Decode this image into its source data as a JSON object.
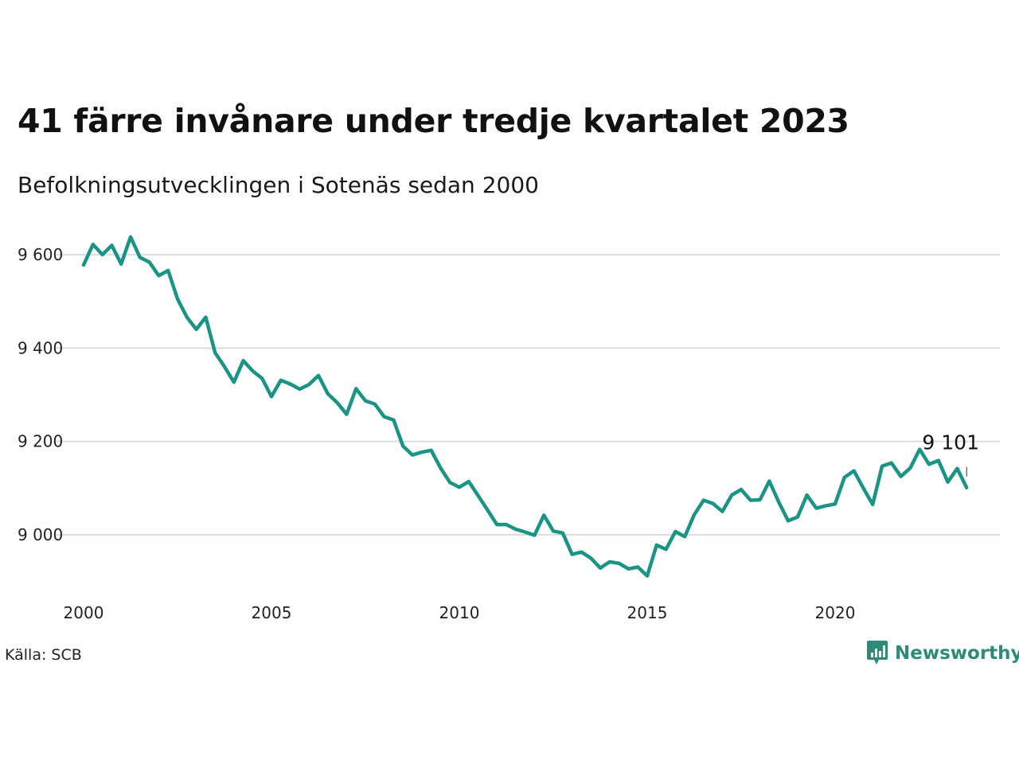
{
  "title": "41 färre invånare under tredje kvartalet 2023",
  "subtitle": "Befolkningsutvecklingen i Sotenäs sedan 2000",
  "source": "Källa: SCB",
  "brand": {
    "name": "Newsworthy",
    "icon": "newsworthy-logo-icon",
    "color": "#2e8b7a"
  },
  "colors": {
    "line": "#1a9485",
    "grid": "#dddddd"
  },
  "chart_data": {
    "type": "line",
    "title": "41 färre invånare under tredje kvartalet 2023",
    "subtitle": "Befolkningsutvecklingen i Sotenäs sedan 2000",
    "xlabel": "",
    "ylabel": "",
    "x_ticks": [
      2000,
      2005,
      2010,
      2015,
      2020
    ],
    "y_ticks": [
      9000,
      9200,
      9400,
      9600
    ],
    "y_tick_labels": [
      "9 000",
      "9 200",
      "9 400",
      "9 600"
    ],
    "x_tick_labels": [
      "2000",
      "2005",
      "2010",
      "2015",
      "2020"
    ],
    "ylim": [
      8880,
      9660
    ],
    "grid": true,
    "end_label": "9 101",
    "series": [
      {
        "x": [
          "2000Q1",
          "2000Q2",
          "2000Q3",
          "2000Q4",
          "2001Q1",
          "2001Q2",
          "2001Q3",
          "2001Q4",
          "2002Q1",
          "2002Q2",
          "2002Q3",
          "2002Q4",
          "2003Q1",
          "2003Q2",
          "2003Q3",
          "2003Q4",
          "2004Q1",
          "2004Q2",
          "2004Q3",
          "2004Q4",
          "2005Q1",
          "2005Q2",
          "2005Q3",
          "2005Q4",
          "2006Q1",
          "2006Q2",
          "2006Q3",
          "2006Q4",
          "2007Q1",
          "2007Q2",
          "2007Q3",
          "2007Q4",
          "2008Q1",
          "2008Q2",
          "2008Q3",
          "2008Q4",
          "2009Q1",
          "2009Q2",
          "2009Q3",
          "2009Q4",
          "2010Q1",
          "2010Q2",
          "2010Q3",
          "2010Q4",
          "2011Q1",
          "2011Q2",
          "2011Q3",
          "2011Q4",
          "2012Q1",
          "2012Q2",
          "2012Q3",
          "2012Q4",
          "2013Q1",
          "2013Q2",
          "2013Q3",
          "2013Q4",
          "2014Q1",
          "2014Q2",
          "2014Q3",
          "2014Q4",
          "2015Q1",
          "2015Q2",
          "2015Q3",
          "2015Q4",
          "2016Q1",
          "2016Q2",
          "2016Q3",
          "2016Q4",
          "2017Q1",
          "2017Q2",
          "2017Q3",
          "2017Q4",
          "2018Q1",
          "2018Q2",
          "2018Q3",
          "2018Q4",
          "2019Q1",
          "2019Q2",
          "2019Q3",
          "2019Q4",
          "2020Q1",
          "2020Q2",
          "2020Q3",
          "2020Q4",
          "2021Q1",
          "2021Q2",
          "2021Q3",
          "2021Q4",
          "2022Q1",
          "2022Q2",
          "2022Q3",
          "2022Q4",
          "2023Q1",
          "2023Q2",
          "2023Q3"
        ],
        "values": [
          9578,
          9622,
          9600,
          9620,
          9580,
          9638,
          9594,
          9584,
          9555,
          9566,
          9505,
          9466,
          9440,
          9466,
          9390,
          9360,
          9327,
          9373,
          9351,
          9335,
          9296,
          9331,
          9323,
          9312,
          9322,
          9341,
          9302,
          9283,
          9258,
          9313,
          9287,
          9280,
          9253,
          9246,
          9190,
          9171,
          9177,
          9181,
          9143,
          9112,
          9102,
          9114,
          9084,
          9053,
          9022,
          9022,
          9012,
          9006,
          8999,
          9042,
          9008,
          9004,
          8958,
          8963,
          8950,
          8929,
          8942,
          8939,
          8927,
          8931,
          8912,
          8978,
          8969,
          9007,
          8996,
          9043,
          9074,
          9067,
          9050,
          9085,
          9097,
          9074,
          9075,
          9115,
          9070,
          9030,
          9038,
          9085,
          9057,
          9062,
          9066,
          9123,
          9137,
          9100,
          9065,
          9147,
          9154,
          9125,
          9143,
          9183,
          9151,
          9159,
          9113,
          9142,
          9101
        ]
      }
    ]
  }
}
